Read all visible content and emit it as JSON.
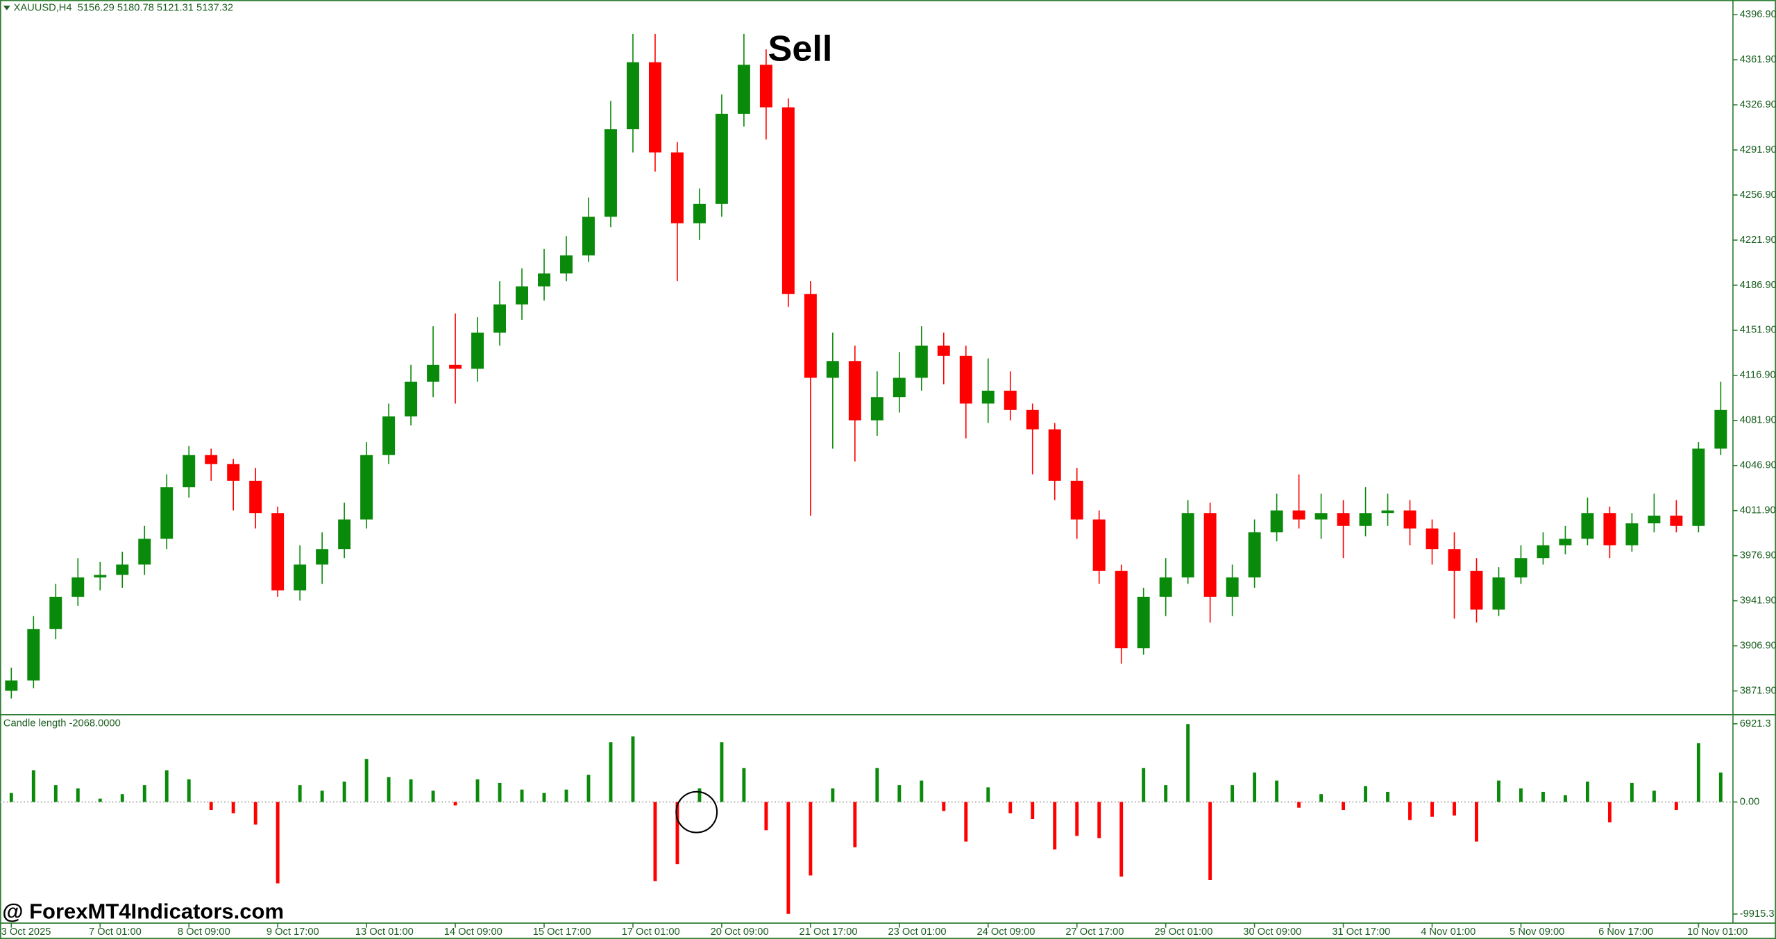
{
  "chart_data": [
    {
      "type": "candlestick",
      "title": "XAUUSD,H4  5156.29 5180.78 5121.31 5137.32",
      "annotation": "Sell",
      "up_color": "#0a8a0a",
      "down_color": "#ff0000",
      "categories": [
        "3 Oct 2025",
        null,
        null,
        null,
        "7 Oct 01:00",
        null,
        null,
        null,
        "8 Oct 09:00",
        null,
        null,
        null,
        "9 Oct 17:00",
        null,
        null,
        null,
        "13 Oct 01:00",
        null,
        null,
        null,
        "14 Oct 09:00",
        null,
        null,
        null,
        "15 Oct 17:00",
        null,
        null,
        null,
        "17 Oct 01:00",
        null,
        null,
        null,
        "20 Oct 09:00",
        null,
        null,
        null,
        "21 Oct 17:00",
        null,
        null,
        null,
        "23 Oct 01:00",
        null,
        null,
        null,
        "24 Oct 09:00",
        null,
        null,
        null,
        "27 Oct 17:00",
        null,
        null,
        null,
        "29 Oct 01:00",
        null,
        null,
        null,
        "30 Oct 09:00",
        null,
        null,
        null,
        "31 Oct 17:00",
        null,
        null,
        null,
        "4 Nov 01:00",
        null,
        null,
        null,
        "5 Nov 09:00",
        null,
        null,
        null,
        "6 Nov 17:00",
        null,
        null,
        null,
        "10 Nov 01:00",
        null
      ],
      "open": [
        3872,
        3880,
        3920,
        3945,
        3960,
        3962,
        3970,
        3990,
        4030,
        4055,
        4048,
        4035,
        4010,
        3950,
        3970,
        3982,
        4005,
        4055,
        4085,
        4112,
        4125,
        4122,
        4150,
        4172,
        4186,
        4196,
        4210,
        4240,
        4308,
        4360,
        4290,
        4235,
        4250,
        4320,
        4358,
        4325,
        4180,
        4115,
        4128,
        4082,
        4100,
        4115,
        4140,
        4132,
        4095,
        4105,
        4090,
        4075,
        4035,
        4005,
        3965,
        3905,
        3945,
        3960,
        4010,
        3945,
        3960,
        3995,
        4012,
        4005,
        4010,
        4000,
        4010,
        4012,
        3998,
        3982,
        3965,
        3935,
        3960,
        3975,
        3985,
        3990,
        4010,
        3985,
        4002,
        4008,
        4000,
        4060
      ],
      "high": [
        3890,
        3930,
        3955,
        3975,
        3972,
        3980,
        4000,
        4040,
        4062,
        4060,
        4052,
        4045,
        4015,
        3985,
        3995,
        4018,
        4065,
        4095,
        4125,
        4155,
        4165,
        4162,
        4190,
        4200,
        4215,
        4225,
        4255,
        4330,
        4382,
        4382,
        4298,
        4262,
        4335,
        4382,
        4370,
        4332,
        4190,
        4150,
        4140,
        4120,
        4135,
        4155,
        4150,
        4140,
        4130,
        4120,
        4095,
        4080,
        4045,
        4012,
        3970,
        3952,
        3975,
        4020,
        4018,
        3970,
        4005,
        4025,
        4040,
        4025,
        4020,
        4030,
        4025,
        4020,
        4005,
        3995,
        3975,
        3968,
        3985,
        3995,
        4000,
        4022,
        4015,
        4010,
        4025,
        4020,
        4065,
        4112
      ],
      "low": [
        3866,
        3874,
        3912,
        3938,
        3950,
        3952,
        3962,
        3982,
        4022,
        4035,
        4012,
        3998,
        3945,
        3942,
        3955,
        3975,
        3998,
        4048,
        4078,
        4100,
        4095,
        4112,
        4140,
        4160,
        4175,
        4190,
        4205,
        4232,
        4290,
        4275,
        4190,
        4222,
        4240,
        4310,
        4300,
        4170,
        4008,
        4060,
        4050,
        4070,
        4088,
        4105,
        4110,
        4068,
        4080,
        4082,
        4040,
        4020,
        3990,
        3955,
        3893,
        3900,
        3930,
        3955,
        3925,
        3930,
        3952,
        3988,
        3998,
        3990,
        3975,
        3992,
        4000,
        3985,
        3970,
        3928,
        3925,
        3930,
        3955,
        3970,
        3978,
        3985,
        3975,
        3980,
        3995,
        3995,
        3995,
        4055
      ],
      "close": [
        3880,
        3920,
        3945,
        3960,
        3962,
        3970,
        3990,
        4030,
        4055,
        4048,
        4035,
        4010,
        3950,
        3970,
        3982,
        4005,
        4055,
        4085,
        4112,
        4125,
        4122,
        4150,
        4172,
        4186,
        4196,
        4210,
        4240,
        4308,
        4360,
        4290,
        4235,
        4250,
        4320,
        4358,
        4325,
        4180,
        4115,
        4128,
        4082,
        4100,
        4115,
        4140,
        4132,
        4095,
        4105,
        4090,
        4075,
        4035,
        4005,
        3965,
        3905,
        3945,
        3960,
        4010,
        3945,
        3960,
        3995,
        4012,
        4005,
        4010,
        4000,
        4010,
        4012,
        3998,
        3982,
        3965,
        3935,
        3960,
        3975,
        3985,
        3990,
        4010,
        3985,
        4002,
        4008,
        4000,
        4060,
        4090
      ],
      "ylim": [
        3854.3,
        4408.3
      ],
      "yticks": [
        {
          "value": 3871.9,
          "label": "3871.90"
        },
        {
          "value": 3906.9,
          "label": "3906.90"
        },
        {
          "value": 3941.9,
          "label": "3941.90"
        },
        {
          "value": 3976.9,
          "label": "3976.90"
        },
        {
          "value": 4011.9,
          "label": "4011.90"
        },
        {
          "value": 4046.9,
          "label": "4046.90"
        },
        {
          "value": 4081.9,
          "label": "4081.90"
        },
        {
          "value": 4116.9,
          "label": "4116.90"
        },
        {
          "value": 4151.9,
          "label": "4151.90"
        },
        {
          "value": 4186.9,
          "label": "4186.90"
        },
        {
          "value": 4221.9,
          "label": "4221.90"
        },
        {
          "value": 4256.9,
          "label": "4256.90"
        },
        {
          "value": 4291.9,
          "label": "4291.90"
        },
        {
          "value": 4326.9,
          "label": "4326.90"
        },
        {
          "value": 4361.9,
          "label": "4361.90"
        },
        {
          "value": 4396.9,
          "label": "4396.90"
        }
      ]
    },
    {
      "type": "bar",
      "title": "Candle length -2068.0000",
      "up_color": "#0a8a0a",
      "down_color": "#ff0000",
      "values": [
        800,
        2800,
        1500,
        1200,
        300,
        700,
        1500,
        2800,
        2000,
        -700,
        -1000,
        -2000,
        -7200,
        1500,
        1000,
        1800,
        3800,
        2200,
        2000,
        1000,
        -300,
        2000,
        1700,
        1100,
        800,
        1100,
        2400,
        5300,
        5800,
        -7000,
        -5500,
        1200,
        5300,
        3000,
        -2500,
        -9900,
        -6500,
        1200,
        -4000,
        3000,
        1500,
        1900,
        -800,
        -3500,
        1300,
        -1000,
        -1500,
        -4200,
        -3000,
        -3200,
        -6600,
        3000,
        1500,
        6900,
        -6900,
        1500,
        2600,
        1900,
        -500,
        700,
        -700,
        1400,
        900,
        -1600,
        -1300,
        -1200,
        -3500,
        1900,
        1200,
        900,
        600,
        1800,
        -1800,
        1700,
        1000,
        -700,
        5200,
        2600
      ],
      "ylim": [
        -10717,
        7623
      ],
      "yticks": [
        -9915.3,
        {
          "value": 0,
          "label": "0.00"
        },
        6921.3
      ]
    }
  ],
  "watermark": "@ ForexMT4Indicators.com"
}
